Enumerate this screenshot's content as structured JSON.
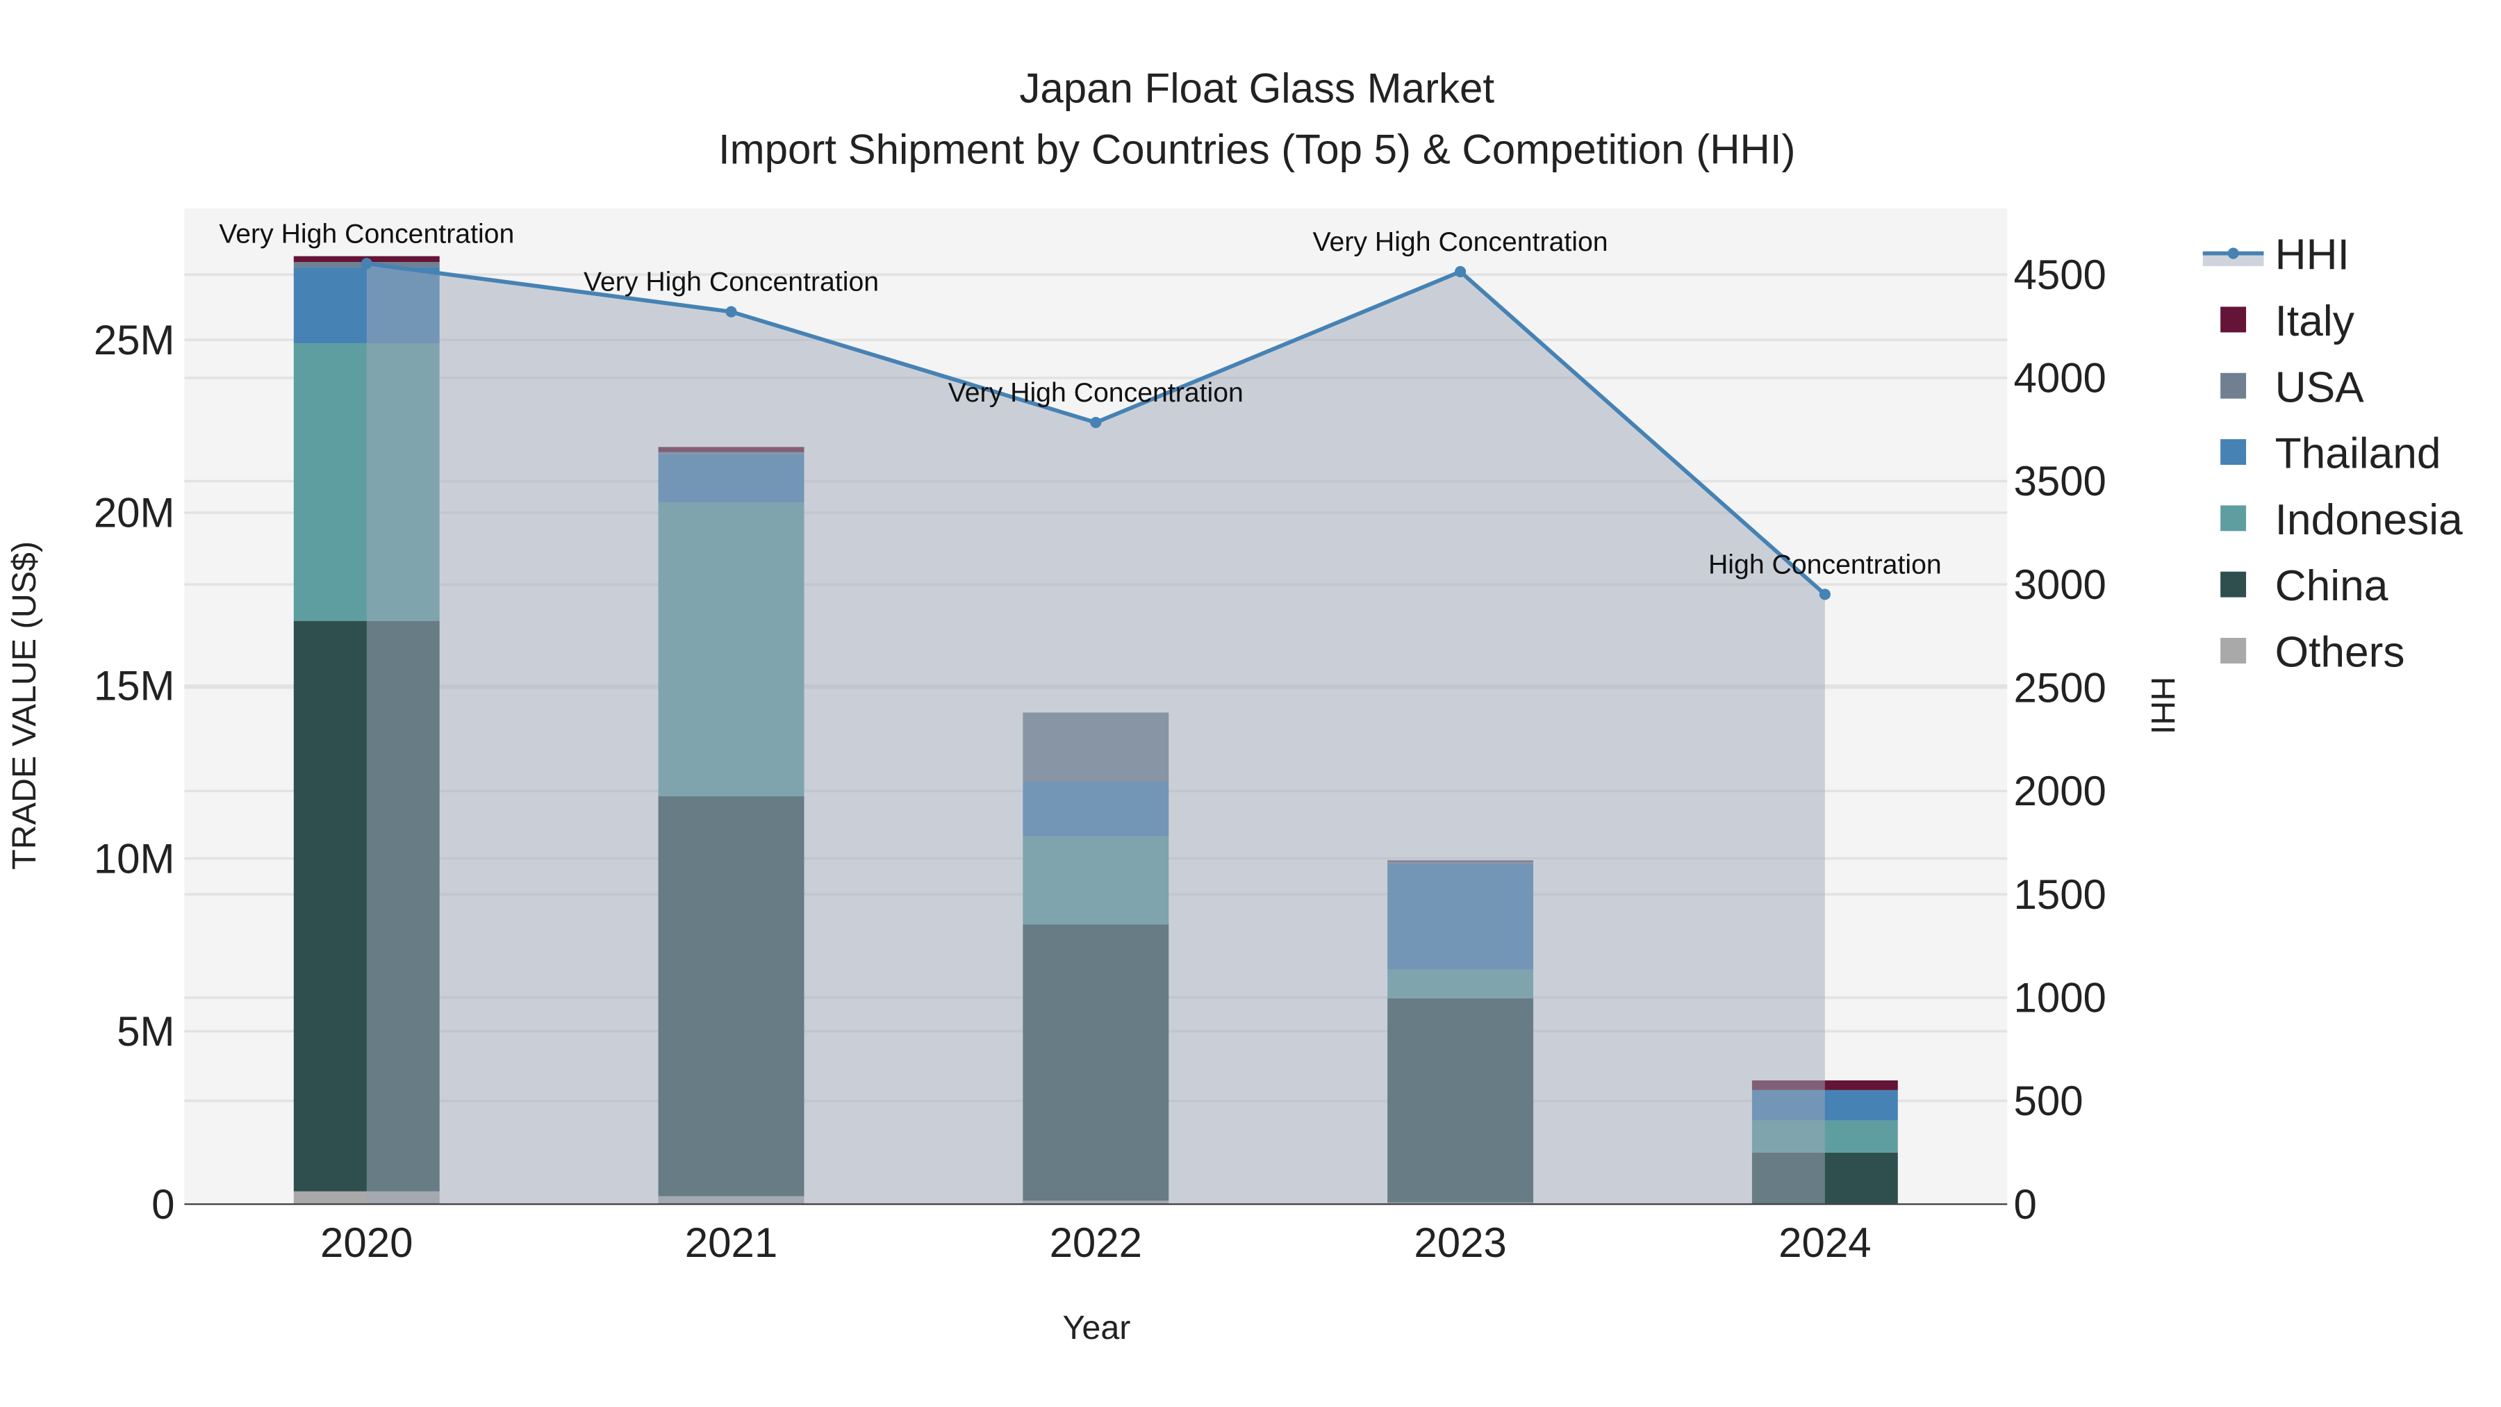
{
  "chart_data": {
    "type": "bar",
    "title": "Japan Float Glass Market",
    "subtitle": "Import Shipment by Countries (Top 5) & Competition (HHI)",
    "xlabel": "Year",
    "ylabel": "TRADE VALUE (US$)",
    "y2label": "HHI",
    "categories": [
      "2020",
      "2021",
      "2022",
      "2023",
      "2024"
    ],
    "ylim": [
      0,
      28800000
    ],
    "y2lim": [
      0,
      4820
    ],
    "yticks": [
      {
        "v": 0,
        "label": "0"
      },
      {
        "v": 5000000,
        "label": "5M"
      },
      {
        "v": 10000000,
        "label": "10M"
      },
      {
        "v": 15000000,
        "label": "15M"
      },
      {
        "v": 20000000,
        "label": "20M"
      },
      {
        "v": 25000000,
        "label": "25M"
      }
    ],
    "y2ticks": [
      0,
      500,
      1000,
      1500,
      2000,
      2500,
      3000,
      3500,
      4000,
      4500
    ],
    "series": [
      {
        "name": "Others",
        "color": "#a9a9a9",
        "values": [
          370000,
          230000,
          100000,
          50000,
          20000
        ]
      },
      {
        "name": "China",
        "color": "#2f4f4f",
        "values": [
          16500000,
          11570000,
          7990000,
          5900000,
          1470000
        ]
      },
      {
        "name": "Indonesia",
        "color": "#5f9ea0",
        "values": [
          8030000,
          8500000,
          2550000,
          830000,
          930000
        ]
      },
      {
        "name": "Thailand",
        "color": "#4682b4",
        "values": [
          2200000,
          1400000,
          1580000,
          3070000,
          880000
        ]
      },
      {
        "name": "USA",
        "color": "#708090",
        "values": [
          150000,
          50000,
          2000000,
          70000,
          0
        ]
      },
      {
        "name": "Italy",
        "color": "#641437",
        "values": [
          170000,
          150000,
          0,
          20000,
          280000
        ]
      }
    ],
    "hhi": {
      "name": "HHI",
      "color": "#4682b4",
      "values": [
        4553,
        4320,
        3784,
        4514,
        2952
      ],
      "annotations": [
        "Very High Concentration",
        "Very High Concentration",
        "Very High Concentration",
        "Very High Concentration",
        "High Concentration"
      ]
    },
    "legend_order": [
      "HHI",
      "Italy",
      "USA",
      "Thailand",
      "Indonesia",
      "China",
      "Others"
    ],
    "legend_position": "right",
    "grid": true
  }
}
